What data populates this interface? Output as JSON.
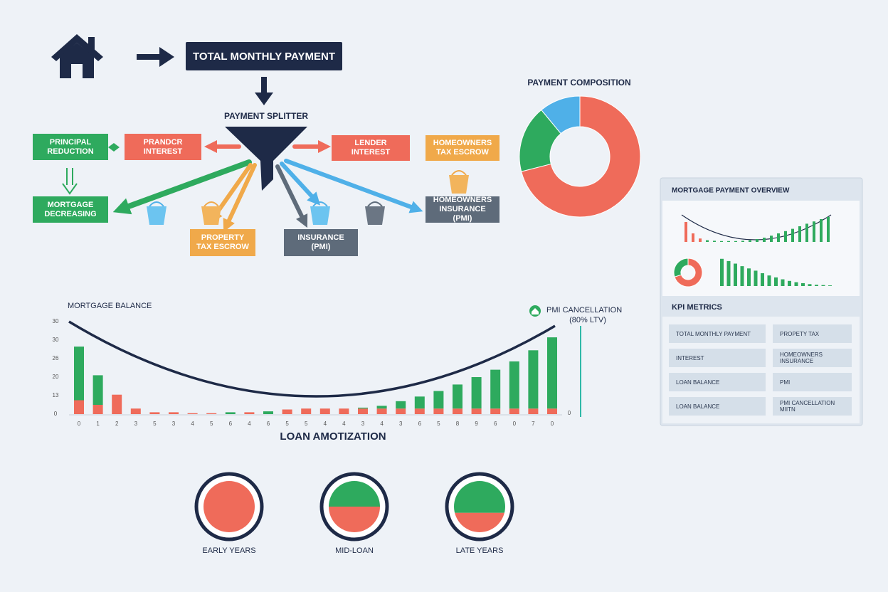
{
  "header": {
    "title": "TOTAL MONTHLY PAYMENT"
  },
  "splitter": {
    "label": "PAYMENT SPLITTER",
    "boxes": [
      "PRINCIPAL REDUCTION",
      "PRANDCR INTEREST",
      "LENDER INTEREST",
      "HOMEOWNERS TAX ESCROW",
      "MORTGAGE DECREASING",
      "PROPERTY TAX ESCROW",
      "INSURANCE (PMI)",
      "HOMEOWNERS INSURANCE (PMI)"
    ]
  },
  "composition": {
    "type": "pie",
    "title": "PAYMENT COMPOSITION",
    "values": [
      71,
      18,
      11
    ],
    "colors": [
      "#ef6b5a",
      "#2eaa5e",
      "#4fb0e8"
    ]
  },
  "chart_data": {
    "type": "bar",
    "title": "MORTGAGE BALANCE",
    "xlabel": "LOAN AMOTIZATION",
    "categories": [
      "0",
      "1",
      "2",
      "3",
      "5",
      "3",
      "4",
      "5",
      "6",
      "4",
      "6",
      "5",
      "5",
      "4",
      "4",
      "3",
      "4",
      "3",
      "6",
      "5",
      "8",
      "9",
      "6",
      "0",
      "7",
      "0"
    ],
    "ytick_labels": [
      "0",
      "13",
      "20",
      "26",
      "30",
      "30"
    ],
    "ylim": [
      0,
      100
    ],
    "series": [
      {
        "color": "#ef6b5a",
        "values": [
          15,
          10,
          21,
          6,
          2,
          2,
          1,
          1,
          0,
          2,
          0,
          5,
          6,
          6,
          6,
          6,
          6,
          6,
          6,
          6,
          6,
          6,
          6,
          6,
          6,
          6
        ]
      },
      {
        "color": "#2eaa5e",
        "values": [
          58,
          32,
          0,
          0,
          0,
          0,
          0,
          0,
          2,
          0,
          3,
          0,
          0,
          0,
          0,
          1,
          3,
          8,
          13,
          19,
          26,
          34,
          42,
          51,
          63,
          77
        ]
      }
    ],
    "annotation": [
      "PMI CANCELLATION",
      "(80% LTV)"
    ],
    "end_label": "0"
  },
  "stages": [
    {
      "label": "EARLY YEARS",
      "values": [
        100,
        0
      ]
    },
    {
      "label": "MID-LOAN",
      "values": [
        50,
        50
      ]
    },
    {
      "label": "LATE YEARS",
      "values": [
        38,
        62
      ]
    }
  ],
  "overview": {
    "title": "MORTGAGE PAYMENT OVERVIEW",
    "kpi_title": "KPI METRICS",
    "kpis": [
      "TOTAL MONTHLY PAYMENT",
      "PROPETY TAX",
      "INTEREST",
      "HOMEOWNERS INSURANCE",
      "LOAN BALANCE",
      "PMI",
      "LOAN BALANCE",
      "PMI CANCELLATION MIITN"
    ],
    "mini_top_bars": [
      70,
      30,
      12,
      6,
      4,
      3,
      3,
      3,
      4,
      6,
      10,
      15,
      22,
      30,
      38,
      46,
      55,
      64,
      72,
      80,
      88
    ],
    "mini_bottom_bars": [
      85,
      78,
      70,
      62,
      55,
      48,
      40,
      33,
      27,
      21,
      16,
      12,
      9,
      6,
      4,
      3,
      2
    ],
    "mini_donut": [
      70,
      30
    ]
  }
}
